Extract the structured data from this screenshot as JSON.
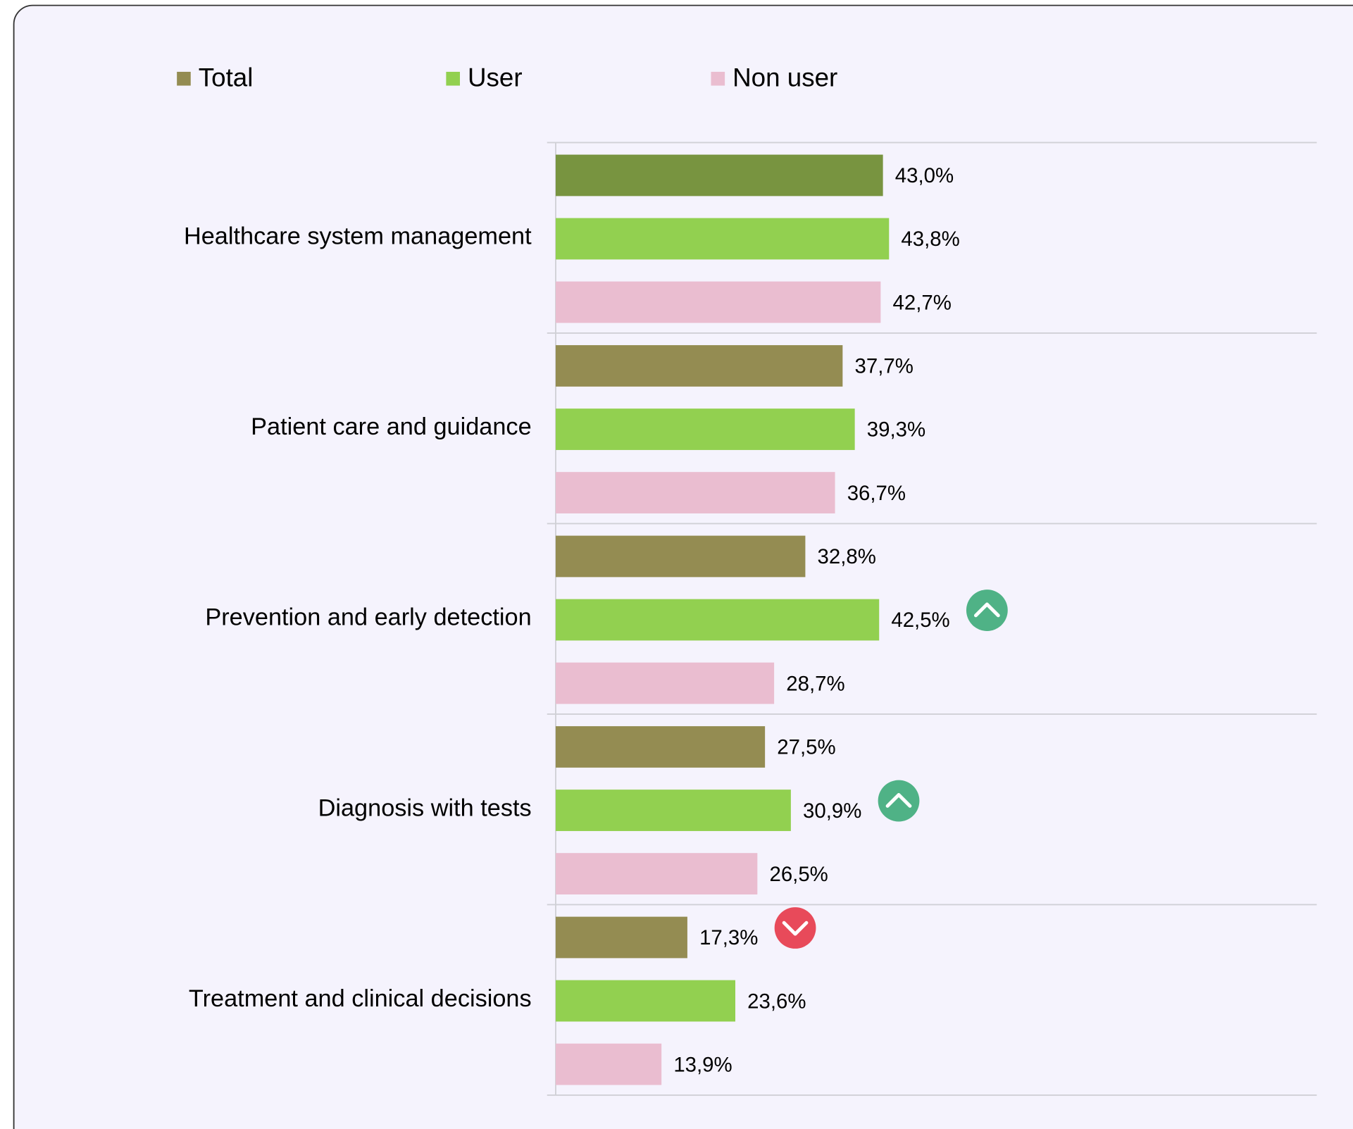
{
  "chart_data": {
    "type": "bar",
    "orientation": "horizontal",
    "categories": [
      "Healthcare system management",
      "Patient care and guidance",
      "Prevention and early detection",
      "Diagnosis with tests",
      "Treatment and clinical decisions"
    ],
    "series": [
      {
        "name": "Total",
        "color": "#948c52",
        "colors": [
          "#789440",
          "#948c52",
          "#948c52",
          "#948c52",
          "#948c52"
        ],
        "values": [
          43.0,
          37.7,
          32.8,
          27.5,
          17.3
        ],
        "value_labels": [
          "43,0%",
          "37,7%",
          "32,8%",
          "27,5%",
          "17,3%"
        ]
      },
      {
        "name": "User",
        "color": "#92d050",
        "values": [
          43.8,
          39.3,
          42.5,
          30.9,
          23.6
        ],
        "value_labels": [
          "43,8%",
          "39,3%",
          "42,5%",
          "30,9%",
          "23,6%"
        ]
      },
      {
        "name": "Non user",
        "color": "#eabdd0",
        "values": [
          42.7,
          36.7,
          28.7,
          26.5,
          13.9
        ],
        "value_labels": [
          "42,7%",
          "36,7%",
          "28,7%",
          "26,5%",
          "13,9%"
        ]
      }
    ],
    "xlim": [
      0,
      100
    ],
    "grid": true,
    "legend": "top",
    "significance": [
      {
        "series": 1,
        "index": 2,
        "direction": "up",
        "color": "#4fb286"
      },
      {
        "series": 1,
        "index": 3,
        "direction": "up",
        "color": "#4fb286"
      },
      {
        "series": 0,
        "index": 4,
        "direction": "down",
        "color": "#e84a5a"
      }
    ]
  }
}
